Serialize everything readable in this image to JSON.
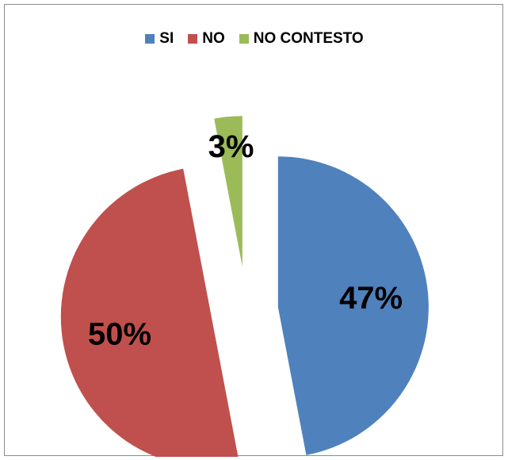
{
  "chart_data": {
    "type": "pie",
    "categories": [
      "SI",
      "NO",
      "NO CONTESTO"
    ],
    "values": [
      47,
      50,
      3
    ],
    "labels": [
      "47%",
      "50%",
      "3%"
    ],
    "colors": [
      "#4F81BD",
      "#C0504D",
      "#9BBB59"
    ],
    "legend_position": "top",
    "exploded": true
  }
}
